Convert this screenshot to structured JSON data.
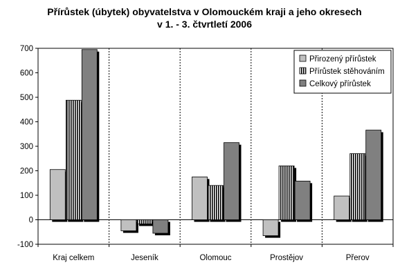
{
  "chart_data": {
    "type": "bar",
    "title_line1": "Přírůstek (úbytek) obyvatelstva v Olomouckém kraji a jeho okresech",
    "title_line2": "v 1. - 3. čtvrtletí 2006",
    "categories": [
      "Kraj celkem",
      "Jeseník",
      "Olomouc",
      "Prostějov",
      "Přerov"
    ],
    "series": [
      {
        "name": "Přirozený přírůstek",
        "values": [
          205,
          -45,
          175,
          -65,
          97
        ],
        "fill": "solid",
        "color": "#c0c0c0"
      },
      {
        "name": "Přírůstek stěhováním",
        "values": [
          488,
          -17,
          140,
          220,
          270
        ],
        "fill": "vertical-stripes",
        "color": "#000000"
      },
      {
        "name": "Celkový přírůstek",
        "values": [
          695,
          -55,
          315,
          158,
          366
        ],
        "fill": "solid",
        "color": "#808080"
      }
    ],
    "ylim": [
      -100,
      700
    ],
    "yticks": [
      "-100",
      "0",
      "100",
      "200",
      "300",
      "400",
      "500",
      "600",
      "700"
    ],
    "grid": "dotted category separators",
    "legend_position": "top-right"
  }
}
